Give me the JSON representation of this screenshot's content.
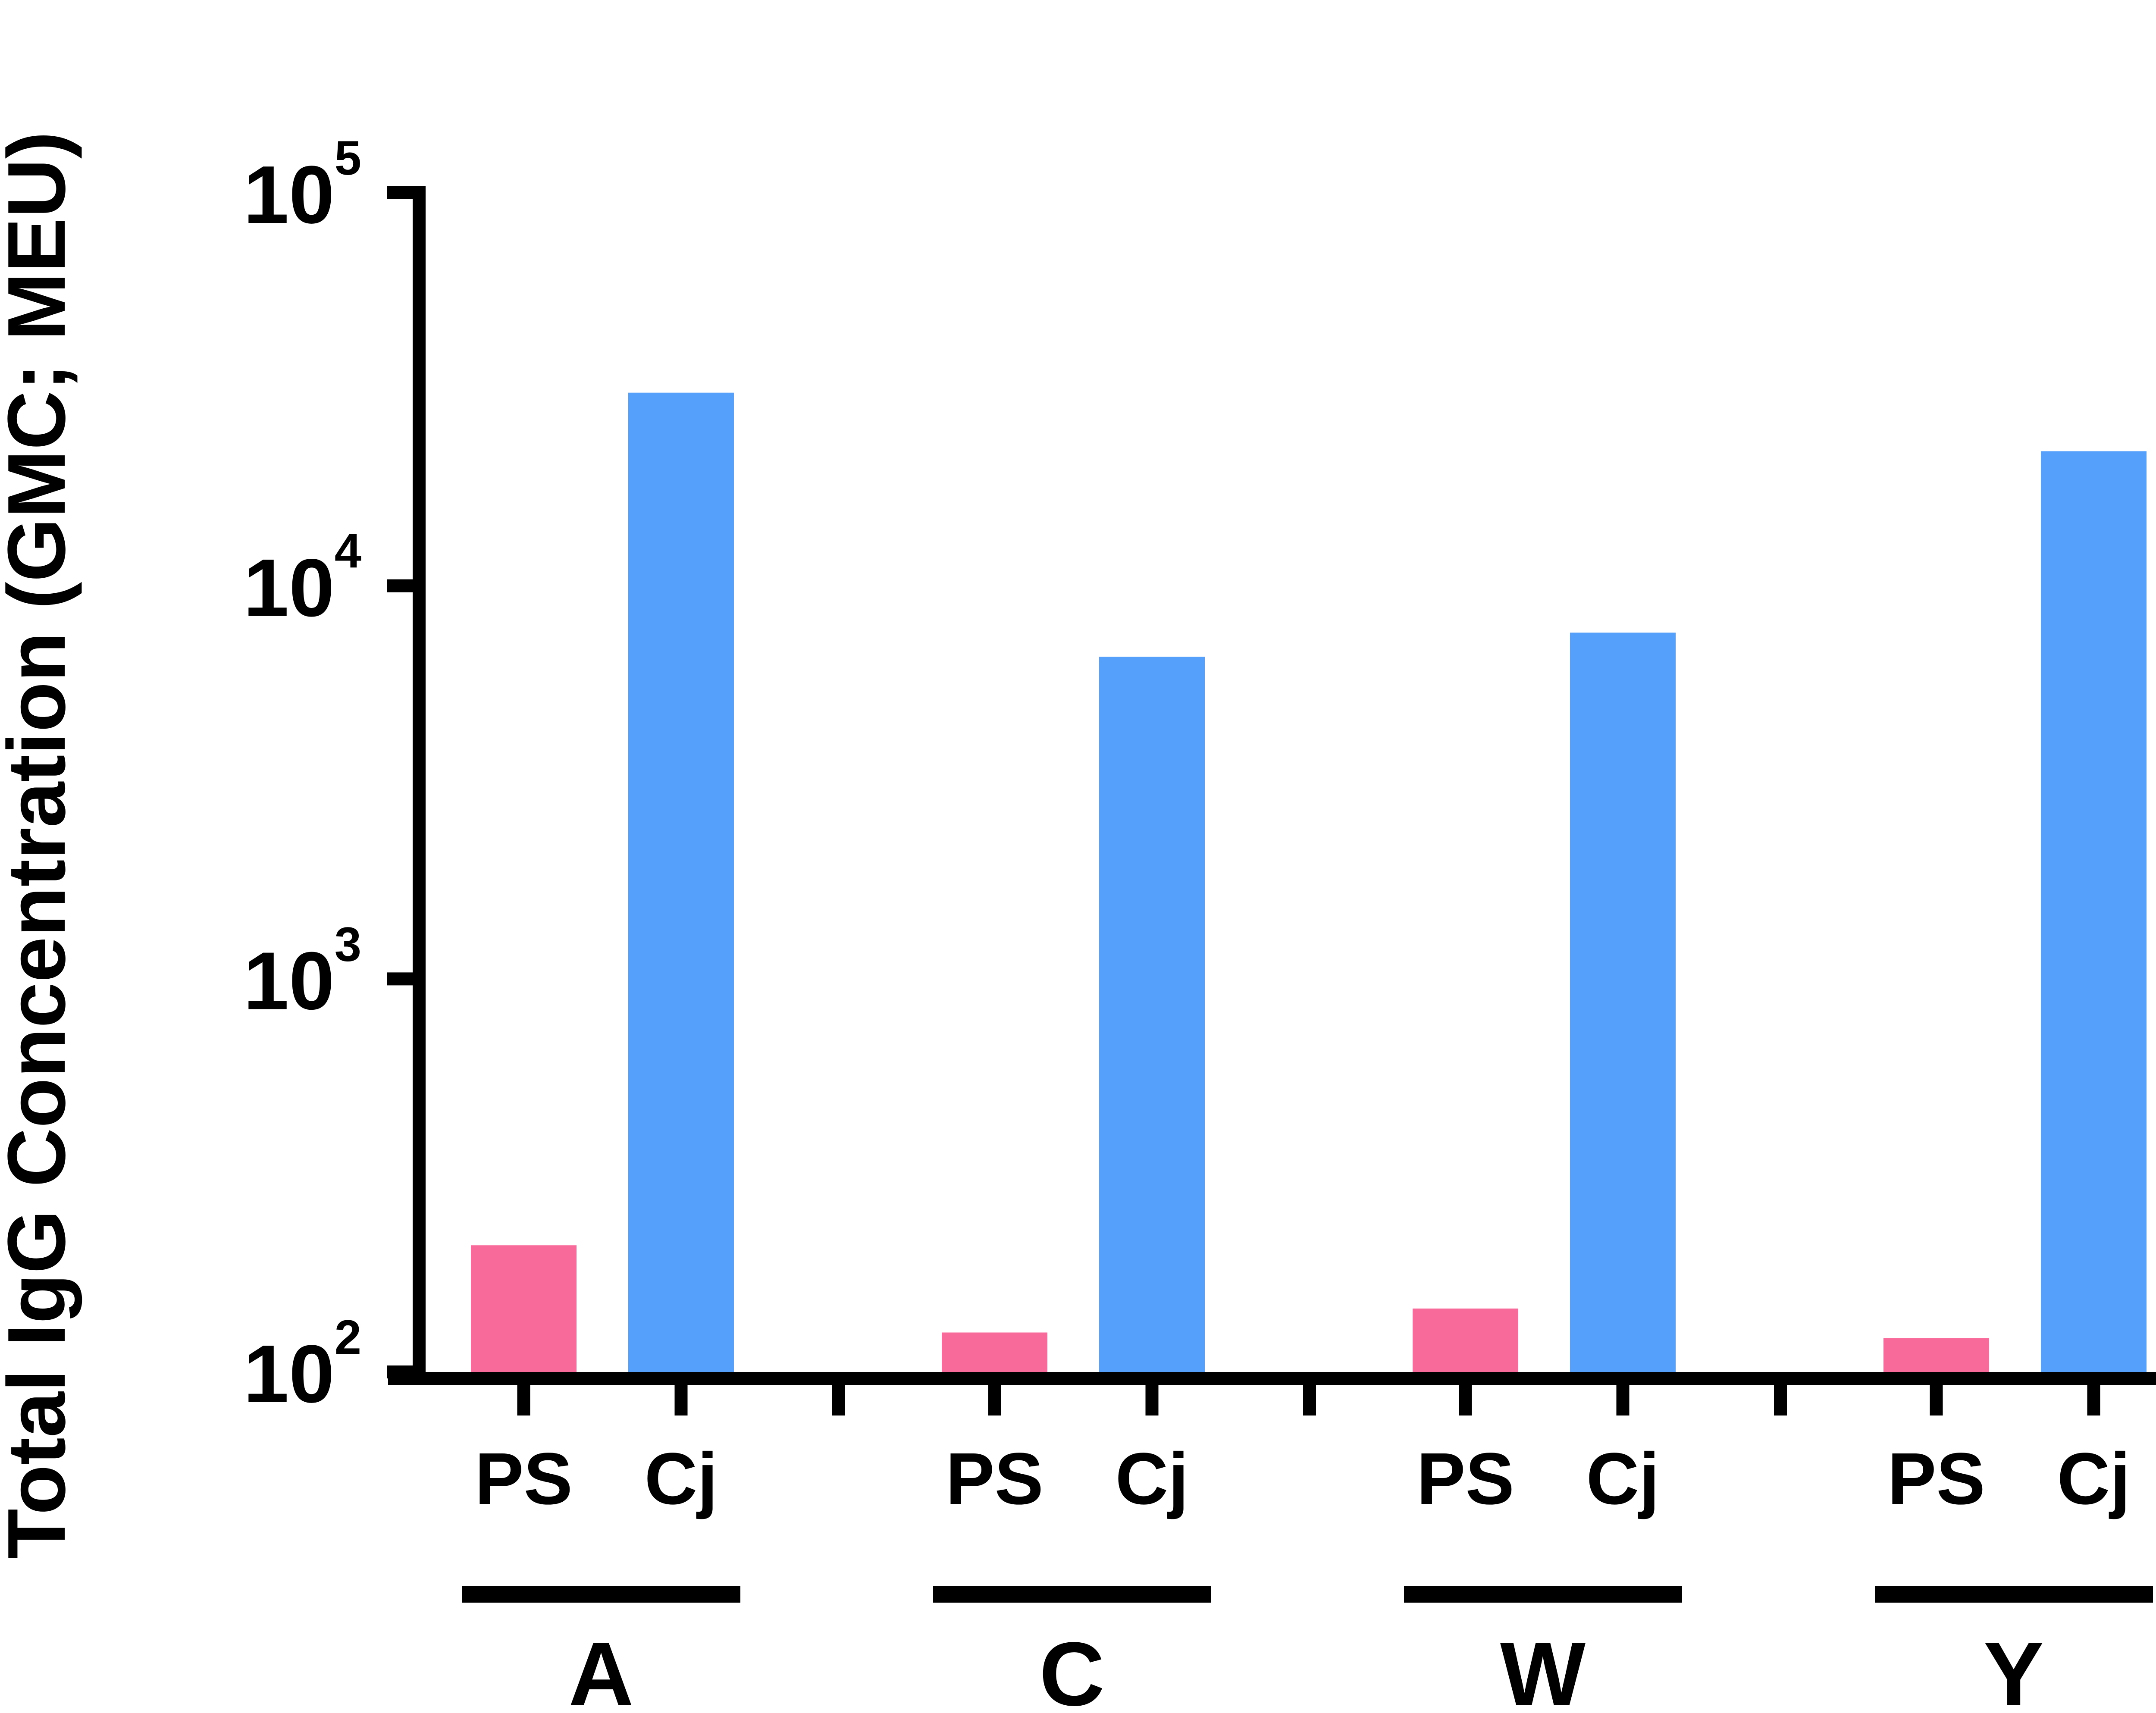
{
  "chart_data": {
    "type": "bar",
    "ylabel": "Total IgG Concentration (GMC; MEU)",
    "yscale": "log",
    "ylim": [
      100,
      100000
    ],
    "yticks": [
      {
        "base": "10",
        "exp": "2",
        "value": 100
      },
      {
        "base": "10",
        "exp": "3",
        "value": 1000
      },
      {
        "base": "10",
        "exp": "4",
        "value": 10000
      },
      {
        "base": "10",
        "exp": "5",
        "value": 100000
      }
    ],
    "categories": [
      "A",
      "C",
      "W",
      "Y"
    ],
    "series": [
      {
        "name": "PS",
        "color": "#F76A99",
        "values": [
          210,
          126,
          145,
          122
        ]
      },
      {
        "name": "Cj",
        "color": "#55A0FA",
        "values": [
          31000,
          6600,
          7600,
          22000
        ]
      }
    ]
  }
}
